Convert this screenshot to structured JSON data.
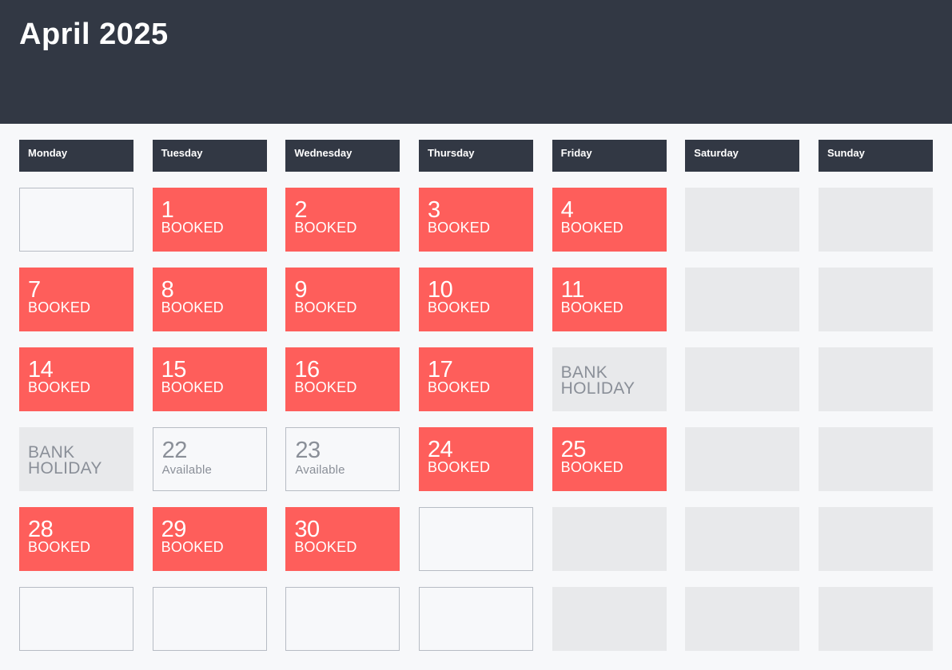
{
  "title": "April 2025",
  "colors": {
    "header": "#323844",
    "booked": "#fe5e5b",
    "holiday": "#e8e9eb",
    "page": "#f7f8fa"
  },
  "weekdays": [
    "Monday",
    "Tuesday",
    "Wednesday",
    "Thursday",
    "Friday",
    "Saturday",
    "Sunday"
  ],
  "weeks": [
    [
      {
        "type": "empty"
      },
      {
        "type": "booked",
        "day": "1",
        "status": "BOOKED"
      },
      {
        "type": "booked",
        "day": "2",
        "status": "BOOKED"
      },
      {
        "type": "booked",
        "day": "3",
        "status": "BOOKED"
      },
      {
        "type": "booked",
        "day": "4",
        "status": "BOOKED"
      },
      {
        "type": "weekend"
      },
      {
        "type": "weekend"
      }
    ],
    [
      {
        "type": "booked",
        "day": "7",
        "status": "BOOKED"
      },
      {
        "type": "booked",
        "day": "8",
        "status": "BOOKED"
      },
      {
        "type": "booked",
        "day": "9",
        "status": "BOOKED"
      },
      {
        "type": "booked",
        "day": "10",
        "status": "BOOKED"
      },
      {
        "type": "booked",
        "day": "11",
        "status": "BOOKED"
      },
      {
        "type": "weekend"
      },
      {
        "type": "weekend"
      }
    ],
    [
      {
        "type": "booked",
        "day": "14",
        "status": "BOOKED"
      },
      {
        "type": "booked",
        "day": "15",
        "status": "BOOKED"
      },
      {
        "type": "booked",
        "day": "16",
        "status": "BOOKED"
      },
      {
        "type": "booked",
        "day": "17",
        "status": "BOOKED"
      },
      {
        "type": "holiday",
        "line1": "BANK",
        "line2": "HOLIDAY"
      },
      {
        "type": "weekend"
      },
      {
        "type": "weekend"
      }
    ],
    [
      {
        "type": "holiday",
        "line1": "BANK",
        "line2": "HOLIDAY"
      },
      {
        "type": "available",
        "day": "22",
        "status": "Available"
      },
      {
        "type": "available",
        "day": "23",
        "status": "Available"
      },
      {
        "type": "booked",
        "day": "24",
        "status": "BOOKED"
      },
      {
        "type": "booked",
        "day": "25",
        "status": "BOOKED"
      },
      {
        "type": "weekend"
      },
      {
        "type": "weekend"
      }
    ],
    [
      {
        "type": "booked",
        "day": "28",
        "status": "BOOKED"
      },
      {
        "type": "booked",
        "day": "29",
        "status": "BOOKED"
      },
      {
        "type": "booked",
        "day": "30",
        "status": "BOOKED"
      },
      {
        "type": "empty"
      },
      {
        "type": "weekend"
      },
      {
        "type": "weekend"
      },
      {
        "type": "weekend"
      }
    ],
    [
      {
        "type": "empty"
      },
      {
        "type": "empty"
      },
      {
        "type": "empty"
      },
      {
        "type": "empty"
      },
      {
        "type": "weekend"
      },
      {
        "type": "weekend"
      },
      {
        "type": "weekend"
      }
    ]
  ]
}
